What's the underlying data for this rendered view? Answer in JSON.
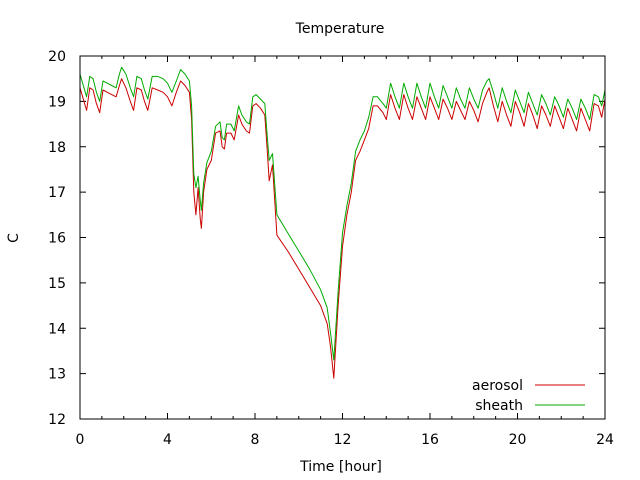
{
  "chart_data": {
    "type": "line",
    "title": "Temperature",
    "xlabel": "Time [hour]",
    "ylabel": "C",
    "xlim": [
      0,
      24
    ],
    "ylim": [
      12,
      20
    ],
    "xticks": [
      0,
      4,
      8,
      12,
      16,
      20,
      24
    ],
    "yticks": [
      12,
      13,
      14,
      15,
      16,
      17,
      18,
      19,
      20
    ],
    "grid": false,
    "legend_position": "bottom-right",
    "series": [
      {
        "name": "aerosol",
        "color": "#cc0000",
        "points": [
          [
            0,
            19.3
          ],
          [
            0.15,
            19.05
          ],
          [
            0.3,
            18.8
          ],
          [
            0.45,
            19.3
          ],
          [
            0.6,
            19.25
          ],
          [
            0.75,
            18.95
          ],
          [
            0.9,
            18.75
          ],
          [
            1.05,
            19.25
          ],
          [
            1.25,
            19.2
          ],
          [
            1.45,
            19.15
          ],
          [
            1.65,
            19.1
          ],
          [
            1.8,
            19.35
          ],
          [
            1.9,
            19.5
          ],
          [
            2.1,
            19.3
          ],
          [
            2.3,
            19.0
          ],
          [
            2.45,
            18.8
          ],
          [
            2.6,
            19.3
          ],
          [
            2.8,
            19.25
          ],
          [
            2.95,
            19.0
          ],
          [
            3.1,
            18.8
          ],
          [
            3.3,
            19.3
          ],
          [
            3.55,
            19.25
          ],
          [
            3.8,
            19.2
          ],
          [
            4.0,
            19.1
          ],
          [
            4.2,
            18.9
          ],
          [
            4.4,
            19.2
          ],
          [
            4.6,
            19.45
          ],
          [
            4.8,
            19.35
          ],
          [
            5.0,
            19.2
          ],
          [
            5.1,
            18.6
          ],
          [
            5.2,
            17.0
          ],
          [
            5.3,
            16.5
          ],
          [
            5.4,
            17.1
          ],
          [
            5.5,
            16.4
          ],
          [
            5.55,
            16.2
          ],
          [
            5.65,
            17.0
          ],
          [
            5.8,
            17.5
          ],
          [
            6.0,
            17.7
          ],
          [
            6.2,
            18.3
          ],
          [
            6.4,
            18.35
          ],
          [
            6.5,
            18.0
          ],
          [
            6.6,
            17.95
          ],
          [
            6.7,
            18.3
          ],
          [
            6.9,
            18.3
          ],
          [
            7.05,
            18.15
          ],
          [
            7.25,
            18.7
          ],
          [
            7.4,
            18.5
          ],
          [
            7.6,
            18.35
          ],
          [
            7.75,
            18.3
          ],
          [
            7.9,
            18.9
          ],
          [
            8.05,
            18.95
          ],
          [
            8.25,
            18.85
          ],
          [
            8.45,
            18.7
          ],
          [
            8.55,
            18.0
          ],
          [
            8.65,
            17.25
          ],
          [
            8.8,
            17.6
          ],
          [
            9.0,
            16.05
          ],
          [
            9.5,
            15.7
          ],
          [
            10.0,
            15.3
          ],
          [
            10.5,
            14.9
          ],
          [
            11.0,
            14.5
          ],
          [
            11.3,
            14.1
          ],
          [
            11.45,
            13.6
          ],
          [
            11.6,
            12.9
          ],
          [
            11.8,
            14.5
          ],
          [
            12.0,
            15.8
          ],
          [
            12.2,
            16.5
          ],
          [
            12.4,
            17.0
          ],
          [
            12.6,
            17.7
          ],
          [
            12.8,
            17.9
          ],
          [
            13.0,
            18.15
          ],
          [
            13.2,
            18.4
          ],
          [
            13.4,
            18.9
          ],
          [
            13.6,
            18.9
          ],
          [
            13.85,
            18.75
          ],
          [
            14.0,
            18.6
          ],
          [
            14.2,
            19.15
          ],
          [
            14.4,
            18.85
          ],
          [
            14.6,
            18.6
          ],
          [
            14.8,
            19.15
          ],
          [
            15.0,
            18.85
          ],
          [
            15.2,
            18.6
          ],
          [
            15.4,
            19.1
          ],
          [
            15.6,
            18.85
          ],
          [
            15.8,
            18.6
          ],
          [
            16.0,
            19.1
          ],
          [
            16.2,
            18.85
          ],
          [
            16.4,
            18.6
          ],
          [
            16.6,
            19.05
          ],
          [
            16.8,
            18.85
          ],
          [
            17.0,
            18.6
          ],
          [
            17.2,
            19.0
          ],
          [
            17.4,
            18.8
          ],
          [
            17.6,
            18.6
          ],
          [
            17.8,
            19.0
          ],
          [
            18.0,
            18.8
          ],
          [
            18.2,
            18.55
          ],
          [
            18.4,
            18.95
          ],
          [
            18.6,
            19.2
          ],
          [
            18.7,
            19.3
          ],
          [
            18.9,
            18.9
          ],
          [
            19.1,
            18.55
          ],
          [
            19.3,
            19.0
          ],
          [
            19.5,
            18.7
          ],
          [
            19.7,
            18.45
          ],
          [
            19.9,
            19.0
          ],
          [
            20.1,
            18.75
          ],
          [
            20.3,
            18.45
          ],
          [
            20.5,
            18.95
          ],
          [
            20.7,
            18.7
          ],
          [
            20.9,
            18.4
          ],
          [
            21.1,
            18.9
          ],
          [
            21.3,
            18.7
          ],
          [
            21.5,
            18.45
          ],
          [
            21.7,
            18.9
          ],
          [
            21.9,
            18.65
          ],
          [
            22.1,
            18.4
          ],
          [
            22.3,
            18.85
          ],
          [
            22.5,
            18.6
          ],
          [
            22.7,
            18.35
          ],
          [
            22.9,
            18.85
          ],
          [
            23.1,
            18.6
          ],
          [
            23.3,
            18.35
          ],
          [
            23.5,
            18.95
          ],
          [
            23.7,
            18.9
          ],
          [
            23.85,
            18.65
          ],
          [
            24.0,
            19.05
          ]
        ]
      },
      {
        "name": "sheath",
        "color": "#00aa00",
        "points": [
          [
            0,
            19.6
          ],
          [
            0.15,
            19.35
          ],
          [
            0.3,
            19.1
          ],
          [
            0.45,
            19.55
          ],
          [
            0.6,
            19.5
          ],
          [
            0.75,
            19.2
          ],
          [
            0.9,
            19.0
          ],
          [
            1.05,
            19.45
          ],
          [
            1.25,
            19.4
          ],
          [
            1.45,
            19.35
          ],
          [
            1.65,
            19.3
          ],
          [
            1.8,
            19.6
          ],
          [
            1.9,
            19.75
          ],
          [
            2.1,
            19.6
          ],
          [
            2.3,
            19.3
          ],
          [
            2.45,
            19.1
          ],
          [
            2.6,
            19.55
          ],
          [
            2.8,
            19.5
          ],
          [
            2.95,
            19.25
          ],
          [
            3.1,
            19.05
          ],
          [
            3.3,
            19.55
          ],
          [
            3.55,
            19.55
          ],
          [
            3.8,
            19.5
          ],
          [
            4.0,
            19.4
          ],
          [
            4.2,
            19.2
          ],
          [
            4.4,
            19.45
          ],
          [
            4.6,
            19.7
          ],
          [
            4.8,
            19.6
          ],
          [
            5.0,
            19.45
          ],
          [
            5.1,
            18.9
          ],
          [
            5.2,
            17.4
          ],
          [
            5.3,
            17.1
          ],
          [
            5.4,
            17.35
          ],
          [
            5.5,
            16.8
          ],
          [
            5.55,
            16.6
          ],
          [
            5.65,
            17.2
          ],
          [
            5.8,
            17.65
          ],
          [
            6.0,
            17.9
          ],
          [
            6.2,
            18.45
          ],
          [
            6.4,
            18.55
          ],
          [
            6.5,
            18.2
          ],
          [
            6.6,
            18.15
          ],
          [
            6.7,
            18.5
          ],
          [
            6.9,
            18.5
          ],
          [
            7.05,
            18.35
          ],
          [
            7.25,
            18.9
          ],
          [
            7.4,
            18.7
          ],
          [
            7.6,
            18.55
          ],
          [
            7.75,
            18.5
          ],
          [
            7.9,
            19.1
          ],
          [
            8.05,
            19.15
          ],
          [
            8.25,
            19.05
          ],
          [
            8.45,
            18.95
          ],
          [
            8.55,
            18.3
          ],
          [
            8.65,
            17.7
          ],
          [
            8.8,
            17.85
          ],
          [
            9.0,
            16.5
          ],
          [
            9.5,
            16.1
          ],
          [
            10.0,
            15.7
          ],
          [
            10.5,
            15.3
          ],
          [
            11.0,
            14.85
          ],
          [
            11.3,
            14.45
          ],
          [
            11.45,
            13.9
          ],
          [
            11.6,
            13.3
          ],
          [
            11.8,
            14.8
          ],
          [
            12.0,
            16.1
          ],
          [
            12.2,
            16.7
          ],
          [
            12.4,
            17.2
          ],
          [
            12.6,
            17.9
          ],
          [
            12.8,
            18.15
          ],
          [
            13.0,
            18.35
          ],
          [
            13.2,
            18.65
          ],
          [
            13.4,
            19.1
          ],
          [
            13.6,
            19.1
          ],
          [
            13.85,
            18.95
          ],
          [
            14.0,
            18.85
          ],
          [
            14.2,
            19.4
          ],
          [
            14.4,
            19.1
          ],
          [
            14.6,
            18.85
          ],
          [
            14.8,
            19.4
          ],
          [
            15.0,
            19.1
          ],
          [
            15.2,
            18.85
          ],
          [
            15.4,
            19.4
          ],
          [
            15.6,
            19.1
          ],
          [
            15.8,
            18.85
          ],
          [
            16.0,
            19.4
          ],
          [
            16.2,
            19.1
          ],
          [
            16.4,
            18.85
          ],
          [
            16.6,
            19.35
          ],
          [
            16.8,
            19.1
          ],
          [
            17.0,
            18.85
          ],
          [
            17.2,
            19.3
          ],
          [
            17.4,
            19.05
          ],
          [
            17.6,
            18.85
          ],
          [
            17.8,
            19.3
          ],
          [
            18.0,
            19.05
          ],
          [
            18.2,
            18.85
          ],
          [
            18.4,
            19.25
          ],
          [
            18.6,
            19.45
          ],
          [
            18.7,
            19.5
          ],
          [
            18.9,
            19.2
          ],
          [
            19.1,
            18.85
          ],
          [
            19.3,
            19.3
          ],
          [
            19.5,
            19.0
          ],
          [
            19.7,
            18.75
          ],
          [
            19.9,
            19.25
          ],
          [
            20.1,
            19.0
          ],
          [
            20.3,
            18.75
          ],
          [
            20.5,
            19.2
          ],
          [
            20.7,
            18.95
          ],
          [
            20.9,
            18.7
          ],
          [
            21.1,
            19.15
          ],
          [
            21.3,
            18.95
          ],
          [
            21.5,
            18.7
          ],
          [
            21.7,
            19.1
          ],
          [
            21.9,
            18.9
          ],
          [
            22.1,
            18.65
          ],
          [
            22.3,
            19.05
          ],
          [
            22.5,
            18.85
          ],
          [
            22.7,
            18.6
          ],
          [
            22.9,
            19.05
          ],
          [
            23.1,
            18.85
          ],
          [
            23.3,
            18.6
          ],
          [
            23.5,
            19.15
          ],
          [
            23.7,
            19.1
          ],
          [
            23.85,
            18.9
          ],
          [
            24.0,
            19.25
          ]
        ]
      }
    ]
  }
}
